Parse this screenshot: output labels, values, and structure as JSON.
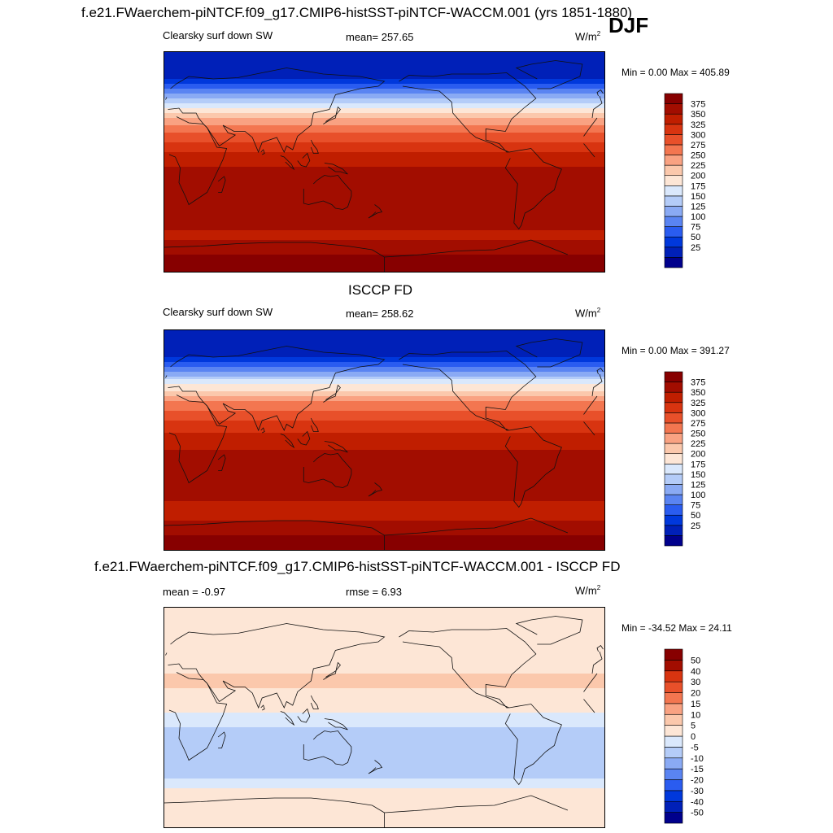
{
  "header": {
    "title": "f.e21.FWaerchem-piNTCF.f09_g17.CMIP6-histSST-piNTCF-WACCM.001 (yrs 1851-1880)",
    "season": "DJF"
  },
  "panels": [
    {
      "name": "model",
      "field_label": "Clearsky surf down SW",
      "mean_label": "mean= 257.65",
      "units": "W/m",
      "units_exp": "2",
      "minmax": "Min =   0.00 Max = 405.89"
    },
    {
      "name": "obs",
      "panel_title": "ISCCP FD",
      "field_label": "Clearsky surf down SW",
      "mean_label": "mean= 258.62",
      "units": "W/m",
      "units_exp": "2",
      "minmax": "Min =   0.00 Max = 391.27"
    },
    {
      "name": "diff",
      "panel_title": "f.e21.FWaerchem-piNTCF.f09_g17.CMIP6-histSST-piNTCF-WACCM.001 - ISCCP FD",
      "field_label": "mean =  -0.97",
      "mean_label": "rmse =   6.93",
      "units": "W/m",
      "units_exp": "2",
      "minmax": "Min = -34.52 Max =  24.11"
    }
  ],
  "colors": {
    "sw_scale": [
      "#00008c",
      "#0020b8",
      "#0038dc",
      "#2a5cf0",
      "#5a84f2",
      "#8aaaf4",
      "#b4ccf8",
      "#dae8fc",
      "#fde6d6",
      "#fbc8ac",
      "#f9a282",
      "#f37650",
      "#e8502a",
      "#d83410",
      "#c01e00",
      "#a20d00",
      "#870000"
    ],
    "diff_scale": [
      "#00008c",
      "#0020b8",
      "#0038dc",
      "#2a5cf0",
      "#5a84f2",
      "#8aaaf4",
      "#b4ccf8",
      "#dae8fc",
      "#fde6d6",
      "#fbc8ac",
      "#f9a282",
      "#f37650",
      "#e8502a",
      "#d83410",
      "#a20d00",
      "#870000"
    ],
    "coast": "#111111"
  },
  "chart_data": [
    {
      "type": "heatmap",
      "title": "Clearsky surf down SW",
      "subtitle": "mean= 257.65",
      "units": "W/m2",
      "min": 0.0,
      "max": 405.89,
      "colorbar_levels": [
        25,
        50,
        75,
        100,
        125,
        150,
        175,
        200,
        225,
        250,
        275,
        300,
        325,
        350,
        375
      ],
      "zonal_profile": {
        "lat": [
          90,
          80,
          70,
          60,
          50,
          40,
          30,
          20,
          10,
          0,
          -10,
          -20,
          -30,
          -40,
          -50,
          -60,
          -70,
          -80,
          -90
        ],
        "values": [
          0,
          0,
          15,
          70,
          140,
          200,
          250,
          290,
          320,
          340,
          360,
          370,
          370,
          365,
          355,
          345,
          360,
          385,
          400
        ]
      }
    },
    {
      "type": "heatmap",
      "title": "ISCCP FD",
      "subtitle": "Clearsky surf down SW  mean= 258.62",
      "units": "W/m2",
      "min": 0.0,
      "max": 391.27,
      "colorbar_levels": [
        25,
        50,
        75,
        100,
        125,
        150,
        175,
        200,
        225,
        250,
        275,
        300,
        325,
        350,
        375
      ],
      "zonal_profile": {
        "lat": [
          90,
          80,
          70,
          60,
          50,
          40,
          30,
          20,
          10,
          0,
          -10,
          -20,
          -30,
          -40,
          -50,
          -60,
          -70,
          -80,
          -90
        ],
        "values": [
          0,
          0,
          18,
          75,
          145,
          205,
          255,
          290,
          318,
          338,
          355,
          365,
          365,
          360,
          350,
          340,
          355,
          380,
          390
        ]
      }
    },
    {
      "type": "heatmap",
      "title": "f.e21.FWaerchem-piNTCF.f09_g17.CMIP6-histSST-piNTCF-WACCM.001 - ISCCP FD",
      "subtitle": "mean =  -0.97  rmse =   6.93",
      "units": "W/m2",
      "min": -34.52,
      "max": 24.11,
      "colorbar_levels": [
        -50,
        -40,
        -30,
        -20,
        -15,
        -10,
        -5,
        0,
        5,
        10,
        15,
        20,
        30,
        40,
        50
      ],
      "zonal_profile": {
        "lat": [
          90,
          80,
          70,
          60,
          50,
          40,
          30,
          20,
          10,
          0,
          -10,
          -20,
          -30,
          -40,
          -50,
          -60,
          -70,
          -80,
          -90
        ],
        "values": [
          2,
          2,
          1,
          2,
          3,
          4,
          6,
          4,
          2,
          -2,
          -6,
          -8,
          -7,
          -6,
          -5,
          2,
          1,
          3,
          5
        ]
      }
    }
  ]
}
